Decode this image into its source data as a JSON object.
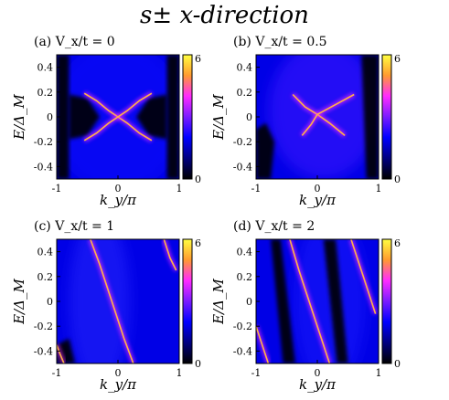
{
  "figure": {
    "title": "s± x-direction"
  },
  "colormap": {
    "stops": [
      "#000000",
      "#000080",
      "#0000ff",
      "#7a1cff",
      "#ff2bff",
      "#ff9a30",
      "#ffff40"
    ],
    "tick_labels": [
      "6",
      "0"
    ]
  },
  "chart_data": [
    {
      "type": "heatmap",
      "panel_label": "(a) Vx/t = 0",
      "title": "(a) V_x/t = 0",
      "xlabel": "k_y/π",
      "ylabel": "E/Δ_M",
      "xlim": [
        -1,
        1
      ],
      "ylim": [
        -0.5,
        0.5
      ],
      "x_ticks": [
        "-1",
        "0",
        "1"
      ],
      "y_ticks": [
        "0.4",
        "0.2",
        "0",
        "-0.2",
        "-0.4"
      ],
      "clim": [
        0,
        6
      ],
      "features": [
        {
          "name": "branch-A",
          "points": [
            [
              -0.55,
              0.19
            ],
            [
              -0.35,
              0.13
            ],
            [
              -0.15,
              0.05
            ],
            [
              0,
              0.0
            ],
            [
              0.15,
              -0.05
            ],
            [
              0.35,
              -0.13
            ],
            [
              0.55,
              -0.19
            ]
          ]
        },
        {
          "name": "branch-B",
          "points": [
            [
              -0.55,
              -0.19
            ],
            [
              -0.35,
              -0.13
            ],
            [
              -0.15,
              -0.05
            ],
            [
              0,
              0.0
            ],
            [
              0.15,
              0.05
            ],
            [
              0.35,
              0.13
            ],
            [
              0.55,
              0.19
            ]
          ]
        }
      ]
    },
    {
      "type": "heatmap",
      "panel_label": "(b) Vx/t = 0.5",
      "title": "(b) V_x/t = 0.5",
      "xlabel": "k_y/π",
      "ylabel": "E/Δ_M",
      "xlim": [
        -1,
        1
      ],
      "ylim": [
        -0.5,
        0.5
      ],
      "x_ticks": [
        "-1",
        "0",
        "1"
      ],
      "y_ticks": [
        "0.4",
        "0.2",
        "0",
        "-0.2",
        "-0.4"
      ],
      "clim": [
        0,
        6
      ],
      "features": [
        {
          "name": "branch-A",
          "points": [
            [
              -0.4,
              0.18
            ],
            [
              -0.2,
              0.08
            ],
            [
              0,
              0.02
            ],
            [
              0.2,
              -0.05
            ],
            [
              0.45,
              -0.15
            ]
          ]
        },
        {
          "name": "branch-B",
          "points": [
            [
              -0.25,
              -0.15
            ],
            [
              -0.1,
              -0.06
            ],
            [
              0,
              0.02
            ],
            [
              0.3,
              0.1
            ],
            [
              0.6,
              0.18
            ]
          ]
        }
      ]
    },
    {
      "type": "heatmap",
      "panel_label": "(c) Vx/t = 1",
      "title": "(c) V_x/t = 1",
      "xlabel": "k_y/π",
      "ylabel": "E/Δ_M",
      "xlim": [
        -1,
        1
      ],
      "ylim": [
        -0.5,
        0.5
      ],
      "x_ticks": [
        "-1",
        "0",
        "1"
      ],
      "y_ticks": [
        "0.4",
        "0.2",
        "0",
        "-0.2",
        "-0.4"
      ],
      "clim": [
        0,
        6
      ],
      "features": [
        {
          "name": "branch-A",
          "points": [
            [
              -0.45,
              0.5
            ],
            [
              -0.3,
              0.3
            ],
            [
              -0.1,
              0.0
            ],
            [
              0.1,
              -0.3
            ],
            [
              0.25,
              -0.5
            ]
          ]
        },
        {
          "name": "branch-B",
          "points": [
            [
              0.75,
              0.5
            ],
            [
              0.85,
              0.35
            ],
            [
              0.95,
              0.25
            ]
          ]
        },
        {
          "name": "branch-C",
          "points": [
            [
              -1.0,
              -0.35
            ],
            [
              -0.95,
              -0.42
            ],
            [
              -0.88,
              -0.5
            ]
          ]
        }
      ]
    },
    {
      "type": "heatmap",
      "panel_label": "(d) Vx/t = 2",
      "title": "(d) V_x/t = 2",
      "xlabel": "k_y/π",
      "ylabel": "E/Δ_M",
      "xlim": [
        -1,
        1
      ],
      "ylim": [
        -0.5,
        0.5
      ],
      "x_ticks": [
        "-1",
        "0",
        "1"
      ],
      "y_ticks": [
        "0.4",
        "0.2",
        "0",
        "-0.2",
        "-0.4"
      ],
      "clim": [
        0,
        6
      ],
      "features": [
        {
          "name": "branch-A",
          "points": [
            [
              -0.45,
              0.5
            ],
            [
              -0.3,
              0.25
            ],
            [
              0,
              -0.2
            ],
            [
              0.2,
              -0.5
            ]
          ]
        },
        {
          "name": "branch-B",
          "points": [
            [
              0.55,
              0.5
            ],
            [
              0.75,
              0.2
            ],
            [
              0.95,
              -0.1
            ]
          ]
        },
        {
          "name": "branch-C",
          "points": [
            [
              -1.0,
              -0.2
            ],
            [
              -0.9,
              -0.35
            ],
            [
              -0.8,
              -0.5
            ]
          ]
        }
      ]
    }
  ]
}
